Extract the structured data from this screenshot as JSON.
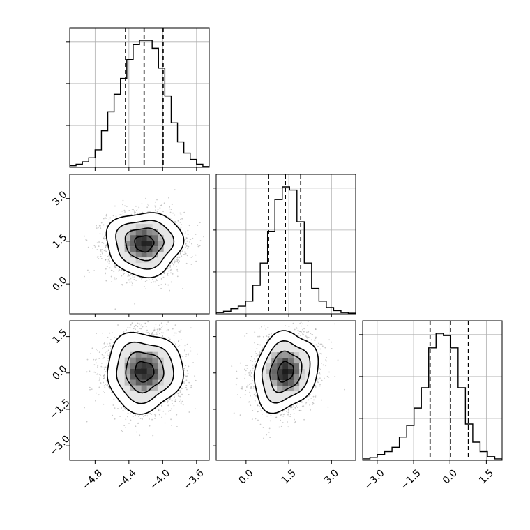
{
  "chart_data": {
    "type": "corner",
    "grid": true,
    "params": [
      {
        "range": [
          -5.1,
          -3.45
        ],
        "ticks": [
          -4.8,
          -4.4,
          -4.0,
          -3.6
        ],
        "tick_labels": [
          "−4.8",
          "−4.4",
          "−4.0",
          "−3.6"
        ]
      },
      {
        "range": [
          -1.05,
          3.85
        ],
        "ticks": [
          0.0,
          1.5,
          3.0
        ],
        "tick_labels": [
          "0.0",
          "1.5",
          "3.0"
        ]
      },
      {
        "range": [
          -3.6,
          2.15
        ],
        "ticks": [
          -3.0,
          -1.5,
          0.0,
          1.5
        ],
        "tick_labels": [
          "−3.0",
          "−1.5",
          "0.0",
          "1.5"
        ]
      }
    ],
    "marginals": [
      {
        "edges": [
          -5.1,
          -3.45
        ],
        "counts": [
          2,
          4,
          7,
          12,
          22,
          46,
          70,
          92,
          112,
          136,
          155,
          160,
          160,
          150,
          125,
          90,
          56,
          32,
          18,
          10,
          4,
          1
        ],
        "quantiles": [
          -4.44,
          -4.22,
          -3.995
        ]
      },
      {
        "edges": [
          -1.05,
          3.85
        ],
        "counts": [
          2,
          4,
          8,
          12,
          20,
          45,
          80,
          130,
          180,
          200,
          195,
          145,
          80,
          40,
          20,
          10,
          5,
          2,
          1
        ],
        "quantiles": [
          0.79,
          1.38,
          1.92
        ]
      },
      {
        "edges": [
          -3.6,
          2.15
        ],
        "counts": [
          2,
          4,
          8,
          12,
          18,
          32,
          48,
          72,
          100,
          155,
          175,
          172,
          155,
          100,
          50,
          25,
          12,
          5,
          2
        ],
        "quantiles": [
          -0.82,
          0.02,
          0.76
        ]
      }
    ],
    "joint": [
      {
        "x_param": 0,
        "y_param": 1,
        "center": [
          -4.22,
          1.42
        ],
        "sigma": [
          0.22,
          0.55
        ],
        "rho": 0.0
      },
      {
        "x_param": 0,
        "y_param": 2,
        "center": [
          -4.22,
          0.06
        ],
        "sigma": [
          0.22,
          0.8
        ],
        "rho": 0.0
      },
      {
        "x_param": 1,
        "y_param": 2,
        "center": [
          1.38,
          0.05
        ],
        "sigma": [
          0.55,
          0.8
        ],
        "rho": 0.18
      }
    ],
    "contour_levels": [
      0.5,
      1.0,
      1.5,
      2.0
    ],
    "colors": {
      "line": "#000000",
      "grid": "#b0b0b0",
      "scatter": "#9a9a9a"
    }
  }
}
